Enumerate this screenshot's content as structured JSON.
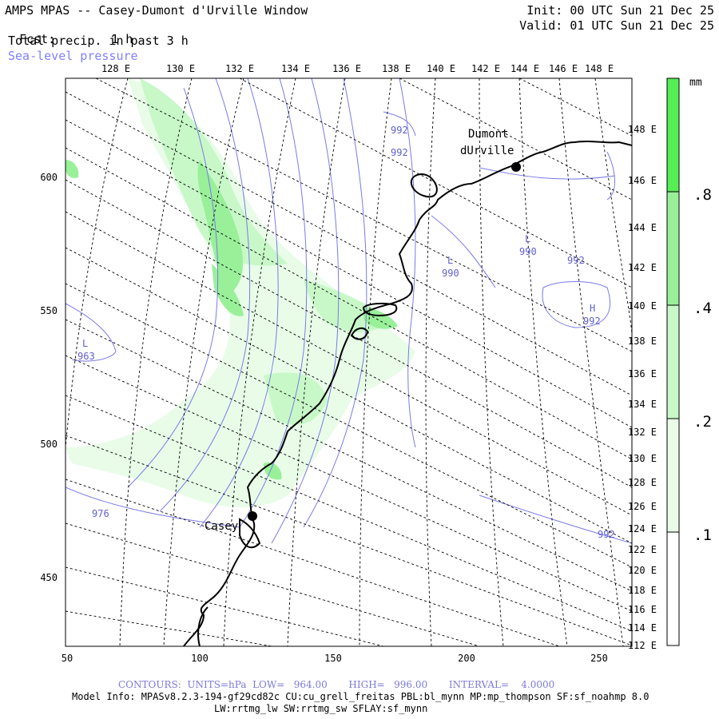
{
  "header": {
    "title": "AMPS MPAS -- Casey-Dumont d'Urville Window",
    "fcst_label": "Fcst:",
    "fcst_value": "1 h",
    "field": "Total precip. in past 3 h",
    "overlay": "Sea-level pressure",
    "init": "Init: 00 UTC Sun 21 Dec 25",
    "valid": "Valid: 01 UTC Sun 21 Dec 25"
  },
  "map": {
    "top_lon_labels": [
      "128 E",
      "130 E",
      "132 E",
      "134 E",
      "136 E",
      "138 E",
      "140 E",
      "142 E",
      "144 E",
      "146 E",
      "148 E"
    ],
    "right_lon_labels": [
      "148 E",
      "146 E",
      "144 E",
      "142 E",
      "140 E",
      "138 E",
      "136 E",
      "134 E",
      "132 E",
      "130 E",
      "128 E",
      "126 E",
      "124 E",
      "122 E",
      "120 E",
      "118 E",
      "116 E",
      "114 E",
      "112 E"
    ],
    "y_axis_labels": [
      "600",
      "550",
      "500",
      "450"
    ],
    "x_axis_labels": [
      "50",
      "100",
      "150",
      "200",
      "250"
    ],
    "stations": [
      {
        "name_line1": "Dumont",
        "name_line2": "dUrville"
      },
      {
        "name_line1": "Casey",
        "name_line2": ""
      }
    ],
    "pressure_labels": [
      {
        "text": "992"
      },
      {
        "text": "992"
      },
      {
        "text": "L"
      },
      {
        "text": "990"
      },
      {
        "text": "992"
      },
      {
        "text": "L"
      },
      {
        "text": "990"
      },
      {
        "text": "H"
      },
      {
        "text": "992"
      },
      {
        "text": "L"
      },
      {
        "text": "963"
      },
      {
        "text": "976"
      },
      {
        "text": "992"
      }
    ]
  },
  "colorbar": {
    "unit": "mm",
    "ticks": [
      ".8",
      ".4",
      ".2",
      ".1"
    ],
    "colors": [
      "#55ee55",
      "#99f099",
      "#c8f8c8",
      "#e8fce8",
      "#ffffff"
    ]
  },
  "footer": {
    "contours": "CONTOURS:  UNITS=hPa  LOW=   964.00       HIGH=   996.00       INTERVAL=    4.0000",
    "model_info": "Model Info: MPASv8.2.3-194-gf29cd82c CU:cu_grell_freitas PBL:bl_mynn MP:mp_thompson SF:sf_noahmp 8.0",
    "model_info2": "LW:rrtmg_lw SW:rrtmg_sw SFLAY:sf_mynn"
  }
}
